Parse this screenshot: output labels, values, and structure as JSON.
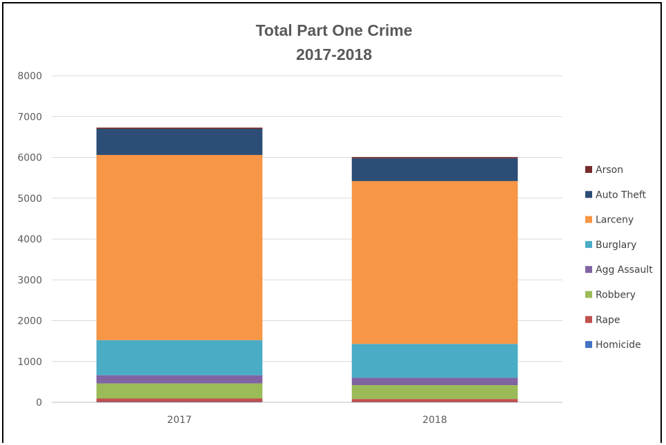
{
  "chart_data": {
    "type": "bar",
    "stacked": true,
    "title": [
      "Total Part One Crime",
      "2017-2018"
    ],
    "xlabel": "",
    "ylabel": "",
    "categories": [
      "2017",
      "2018"
    ],
    "ylim": [
      0,
      8000
    ],
    "yticks": [
      0,
      1000,
      2000,
      3000,
      4000,
      5000,
      6000,
      7000,
      8000
    ],
    "grid": true,
    "legend_position": "right",
    "series": [
      {
        "name": "Homicide",
        "color": "#4472C4",
        "values": [
          8,
          6
        ]
      },
      {
        "name": "Rape",
        "color": "#C0504D",
        "values": [
          85,
          75
        ]
      },
      {
        "name": "Robbery",
        "color": "#9BBB59",
        "values": [
          370,
          340
        ]
      },
      {
        "name": "Agg Assault",
        "color": "#8064A2",
        "values": [
          200,
          180
        ]
      },
      {
        "name": "Burglary",
        "color": "#4BACC6",
        "values": [
          860,
          830
        ]
      },
      {
        "name": "Larceny",
        "color": "#F79646",
        "values": [
          4537,
          3989
        ]
      },
      {
        "name": "Auto Theft",
        "color": "#2C4D75",
        "values": [
          640,
          560
        ]
      },
      {
        "name": "Arson",
        "color": "#772C2A",
        "values": [
          30,
          30
        ]
      }
    ]
  }
}
